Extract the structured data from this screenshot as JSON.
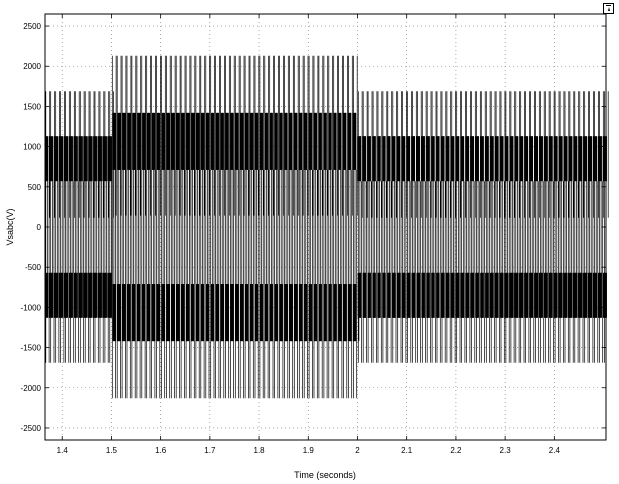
{
  "chart_data": {
    "type": "line",
    "title": "",
    "xlabel": "Time (seconds)",
    "ylabel": "Vsabc(V)",
    "xlim": [
      1.365,
      2.505
    ],
    "ylim": [
      -2650,
      2650
    ],
    "x_ticks": [
      1.4,
      1.5,
      1.6,
      1.7,
      1.8,
      1.9,
      2,
      2.1,
      2.2,
      2.3,
      2.4
    ],
    "x_tick_labels": [
      "1.4",
      "1.5",
      "1.6",
      "1.7",
      "1.8",
      "1.9",
      "2",
      "2.1",
      "2.2",
      "2.3",
      "2.4"
    ],
    "y_ticks": [
      2500,
      2000,
      1500,
      1000,
      500,
      0,
      -500,
      -1000,
      -1500,
      -2000,
      -2500
    ],
    "y_tick_labels": [
      "2500",
      "2000",
      "1500",
      "1000",
      "500",
      "0",
      "-500",
      "-1000",
      "-1500",
      "-2000",
      "-2500"
    ],
    "grid": "dotted",
    "line_color": "#000000",
    "pulse_period_s": 0.01,
    "segments": [
      {
        "t_start": 1.365,
        "t_end": 1.5,
        "levels": [
          1690,
          1130,
          570
        ]
      },
      {
        "t_start": 1.5,
        "t_end": 2.0,
        "levels": [
          2130,
          1420,
          710
        ]
      },
      {
        "t_start": 2.0,
        "t_end": 2.505,
        "levels": [
          1690,
          1130,
          570
        ]
      }
    ]
  }
}
